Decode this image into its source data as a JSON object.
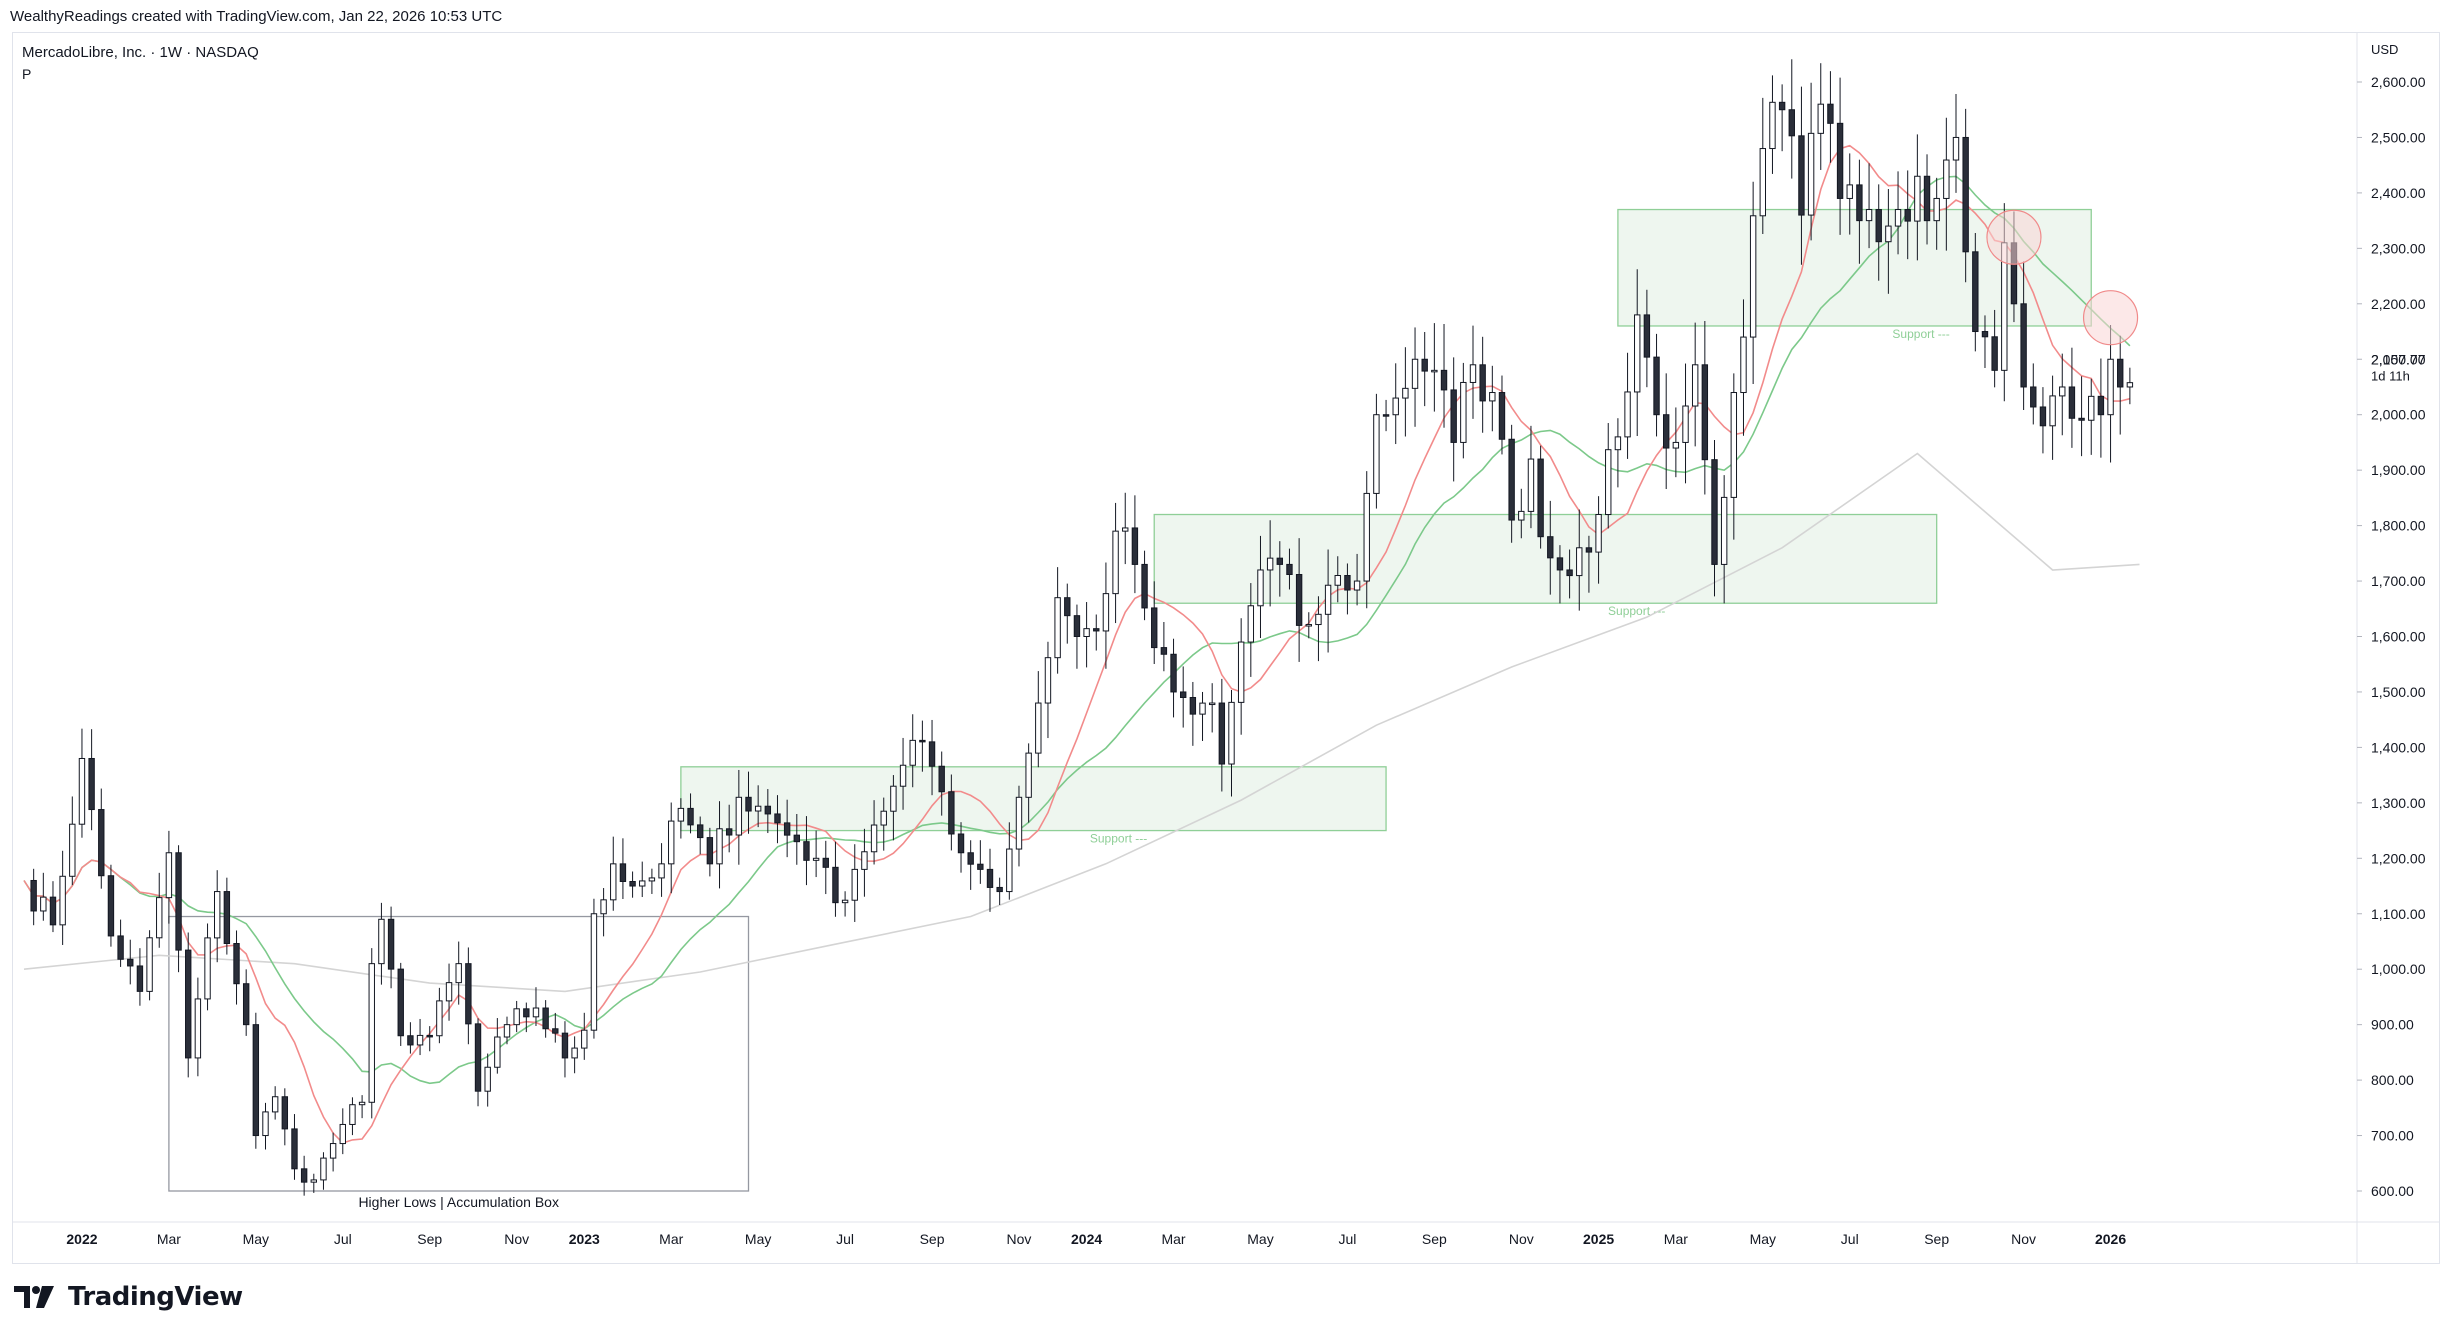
{
  "header": {
    "attribution": "WealthyReadings created with TradingView.com, Jan 22, 2026 10:53 UTC"
  },
  "legend": {
    "symbol": "MercadoLibre, Inc. · 1W · NASDAQ",
    "indicator": "P"
  },
  "footer": {
    "brand": "TradingView"
  },
  "colors": {
    "up_fill": "#ffffff",
    "down_fill": "#2a2e39",
    "candle_outline": "#131722",
    "ma_red": "#f28b8b",
    "ma_green": "#7cc98a",
    "ma_gray": "#d4d4d4",
    "box_green_fill": "#eef6ef",
    "box_green_stroke": "#8fcf97",
    "box_gray_stroke": "#9598a1",
    "circle_fill": "#f9d6d6",
    "circle_stroke": "#f08a8a"
  },
  "chart_data": {
    "type": "candlestick",
    "title": "MercadoLibre, Inc. · 1W · NASDAQ",
    "currency": "USD",
    "ylim": [
      560,
      2680
    ],
    "y_ticks": [
      "2,600.00",
      "2,500.00",
      "2,400.00",
      "2,300.00",
      "2,200.00",
      "2,100.00",
      "2,000.00",
      "1,900.00",
      "1,800.00",
      "1,700.00",
      "1,600.00",
      "1,500.00",
      "1,400.00",
      "1,300.00",
      "1,200.00",
      "1,100.00",
      "1,000.00",
      "900.00",
      "800.00",
      "700.00",
      "600.00"
    ],
    "y_tick_values": [
      2600,
      2500,
      2400,
      2300,
      2200,
      2100,
      2000,
      1900,
      1800,
      1700,
      1600,
      1500,
      1400,
      1300,
      1200,
      1100,
      1000,
      900,
      800,
      700,
      600
    ],
    "x_ticks": [
      {
        "label": "2022",
        "week": 6,
        "bold": true
      },
      {
        "label": "Mar",
        "week": 15
      },
      {
        "label": "May",
        "week": 24
      },
      {
        "label": "Jul",
        "week": 33
      },
      {
        "label": "Sep",
        "week": 42
      },
      {
        "label": "Nov",
        "week": 51
      },
      {
        "label": "2023",
        "week": 58,
        "bold": true
      },
      {
        "label": "Mar",
        "week": 67
      },
      {
        "label": "May",
        "week": 76
      },
      {
        "label": "Jul",
        "week": 85
      },
      {
        "label": "Sep",
        "week": 94
      },
      {
        "label": "Nov",
        "week": 103
      },
      {
        "label": "2024",
        "week": 110,
        "bold": true
      },
      {
        "label": "Mar",
        "week": 119
      },
      {
        "label": "May",
        "week": 128
      },
      {
        "label": "Jul",
        "week": 137
      },
      {
        "label": "Sep",
        "week": 146
      },
      {
        "label": "Nov",
        "week": 155
      },
      {
        "label": "2025",
        "week": 163,
        "bold": true
      },
      {
        "label": "Mar",
        "week": 171
      },
      {
        "label": "May",
        "week": 180
      },
      {
        "label": "Jul",
        "week": 189
      },
      {
        "label": "Sep",
        "week": 198
      },
      {
        "label": "Nov",
        "week": 207
      },
      {
        "label": "2026",
        "week": 216,
        "bold": true
      }
    ],
    "price_label": "2,057.77",
    "countdown_label": "1d 11h",
    "last_price": 2057.77,
    "anchors": [
      [
        0,
        1160
      ],
      [
        3,
        1080
      ],
      [
        6,
        1380
      ],
      [
        9,
        1060
      ],
      [
        12,
        960
      ],
      [
        15,
        1210
      ],
      [
        17,
        840
      ],
      [
        20,
        1140
      ],
      [
        23,
        900
      ],
      [
        24,
        700
      ],
      [
        26,
        770
      ],
      [
        28,
        640
      ],
      [
        30,
        620
      ],
      [
        33,
        720
      ],
      [
        35,
        760
      ],
      [
        36,
        1010
      ],
      [
        37,
        1090
      ],
      [
        39,
        880
      ],
      [
        42,
        880
      ],
      [
        45,
        1010
      ],
      [
        47,
        780
      ],
      [
        50,
        900
      ],
      [
        53,
        930
      ],
      [
        56,
        840
      ],
      [
        58,
        890
      ],
      [
        59,
        1100
      ],
      [
        61,
        1190
      ],
      [
        63,
        1150
      ],
      [
        66,
        1190
      ],
      [
        68,
        1290
      ],
      [
        71,
        1190
      ],
      [
        74,
        1310
      ],
      [
        77,
        1280
      ],
      [
        80,
        1230
      ],
      [
        82,
        1200
      ],
      [
        84,
        1120
      ],
      [
        86,
        1180
      ],
      [
        88,
        1260
      ],
      [
        90,
        1330
      ],
      [
        93,
        1410
      ],
      [
        95,
        1320
      ],
      [
        97,
        1210
      ],
      [
        99,
        1180
      ],
      [
        101,
        1140
      ],
      [
        103,
        1310
      ],
      [
        105,
        1480
      ],
      [
        107,
        1670
      ],
      [
        109,
        1600
      ],
      [
        111,
        1610
      ],
      [
        113,
        1790
      ],
      [
        115,
        1730
      ],
      [
        117,
        1580
      ],
      [
        119,
        1500
      ],
      [
        121,
        1460
      ],
      [
        123,
        1480
      ],
      [
        124,
        1370
      ],
      [
        126,
        1590
      ],
      [
        128,
        1720
      ],
      [
        130,
        1730
      ],
      [
        132,
        1620
      ],
      [
        134,
        1640
      ],
      [
        136,
        1710
      ],
      [
        138,
        1700
      ],
      [
        140,
        2000
      ],
      [
        142,
        2030
      ],
      [
        144,
        2100
      ],
      [
        146,
        2080
      ],
      [
        148,
        1950
      ],
      [
        150,
        2090
      ],
      [
        152,
        2040
      ],
      [
        154,
        1810
      ],
      [
        156,
        1920
      ],
      [
        157,
        1780
      ],
      [
        159,
        1720
      ],
      [
        161,
        1760
      ],
      [
        163,
        1820
      ],
      [
        165,
        1960
      ],
      [
        167,
        2180
      ],
      [
        169,
        2000
      ],
      [
        171,
        1950
      ],
      [
        173,
        2090
      ],
      [
        175,
        1730
      ],
      [
        177,
        2040
      ],
      [
        178,
        2140
      ],
      [
        180,
        2480
      ],
      [
        182,
        2550
      ],
      [
        184,
        2360
      ],
      [
        186,
        2560
      ],
      [
        188,
        2390
      ],
      [
        191,
        2370
      ],
      [
        194,
        2370
      ],
      [
        196,
        2430
      ],
      [
        198,
        2390
      ],
      [
        200,
        2500
      ],
      [
        202,
        2150
      ],
      [
        204,
        2080
      ],
      [
        205,
        2310
      ],
      [
        206,
        2200
      ],
      [
        207,
        2050
      ],
      [
        209,
        1980
      ],
      [
        211,
        2050
      ],
      [
        213,
        1990
      ],
      [
        215,
        2000
      ],
      [
        216,
        2100
      ],
      [
        217,
        2050
      ],
      [
        218,
        2057.77
      ]
    ],
    "sma_gray_start": [
      0,
      1000
    ],
    "sma_gray_points": [
      [
        0,
        1000
      ],
      [
        14,
        1025
      ],
      [
        28,
        1010
      ],
      [
        42,
        975
      ],
      [
        56,
        960
      ],
      [
        70,
        995
      ],
      [
        84,
        1045
      ],
      [
        98,
        1095
      ],
      [
        112,
        1190
      ],
      [
        126,
        1305
      ],
      [
        140,
        1440
      ],
      [
        154,
        1545
      ],
      [
        168,
        1635
      ],
      [
        182,
        1760
      ],
      [
        196,
        1930
      ],
      [
        210,
        1720
      ],
      [
        219,
        1730
      ]
    ],
    "rect_boxes": [
      {
        "label": "Higher Lows | Accumulation Box",
        "w1": 15,
        "w2": 75,
        "top": 1095,
        "bottom": 600,
        "style": "gray"
      },
      {
        "label": "Support ---",
        "w1": 68,
        "w2": 141,
        "top": 1365,
        "bottom": 1250,
        "style": "green"
      },
      {
        "label": "Support ---",
        "w1": 117,
        "w2": 198,
        "top": 1820,
        "bottom": 1660,
        "style": "green"
      },
      {
        "label": "Support ---",
        "w1": 165,
        "w2": 214,
        "top": 2370,
        "bottom": 2160,
        "style": "green"
      }
    ],
    "circles": [
      {
        "week": 206,
        "price": 2320
      },
      {
        "week": 216,
        "price": 2175
      }
    ]
  }
}
